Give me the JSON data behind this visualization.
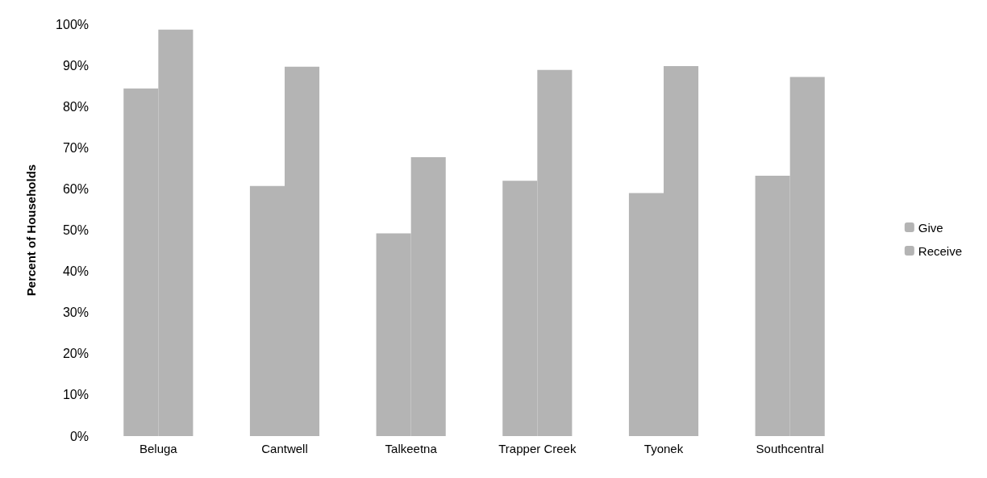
{
  "chart_data": {
    "type": "bar",
    "ylabel": "Percent of Households",
    "categories": [
      "Beluga",
      "Cantwell",
      "Talkeetna",
      "Trapper Creek",
      "Tyonek",
      "Southcentral"
    ],
    "series": [
      {
        "name": "Give",
        "color": "#b4b4b4",
        "values": [
          84.4,
          60.7,
          49.2,
          62.0,
          59.0,
          63.2
        ]
      },
      {
        "name": "Receive",
        "color": "#b4b4b4",
        "values": [
          98.7,
          89.7,
          67.7,
          88.9,
          89.8,
          87.2
        ]
      }
    ],
    "ylim": [
      0,
      100
    ],
    "yticks": [
      {
        "value": 0,
        "label": "0%"
      },
      {
        "value": 10,
        "label": "10%"
      },
      {
        "value": 20,
        "label": "20%"
      },
      {
        "value": 30,
        "label": "30%"
      },
      {
        "value": 40,
        "label": "40%"
      },
      {
        "value": 50,
        "label": "50%"
      },
      {
        "value": 60,
        "label": "60%"
      },
      {
        "value": 70,
        "label": "70%"
      },
      {
        "value": 80,
        "label": "80%"
      },
      {
        "value": 90,
        "label": "90%"
      },
      {
        "value": 100,
        "label": "100%"
      }
    ],
    "grid": false,
    "legend": "right"
  }
}
